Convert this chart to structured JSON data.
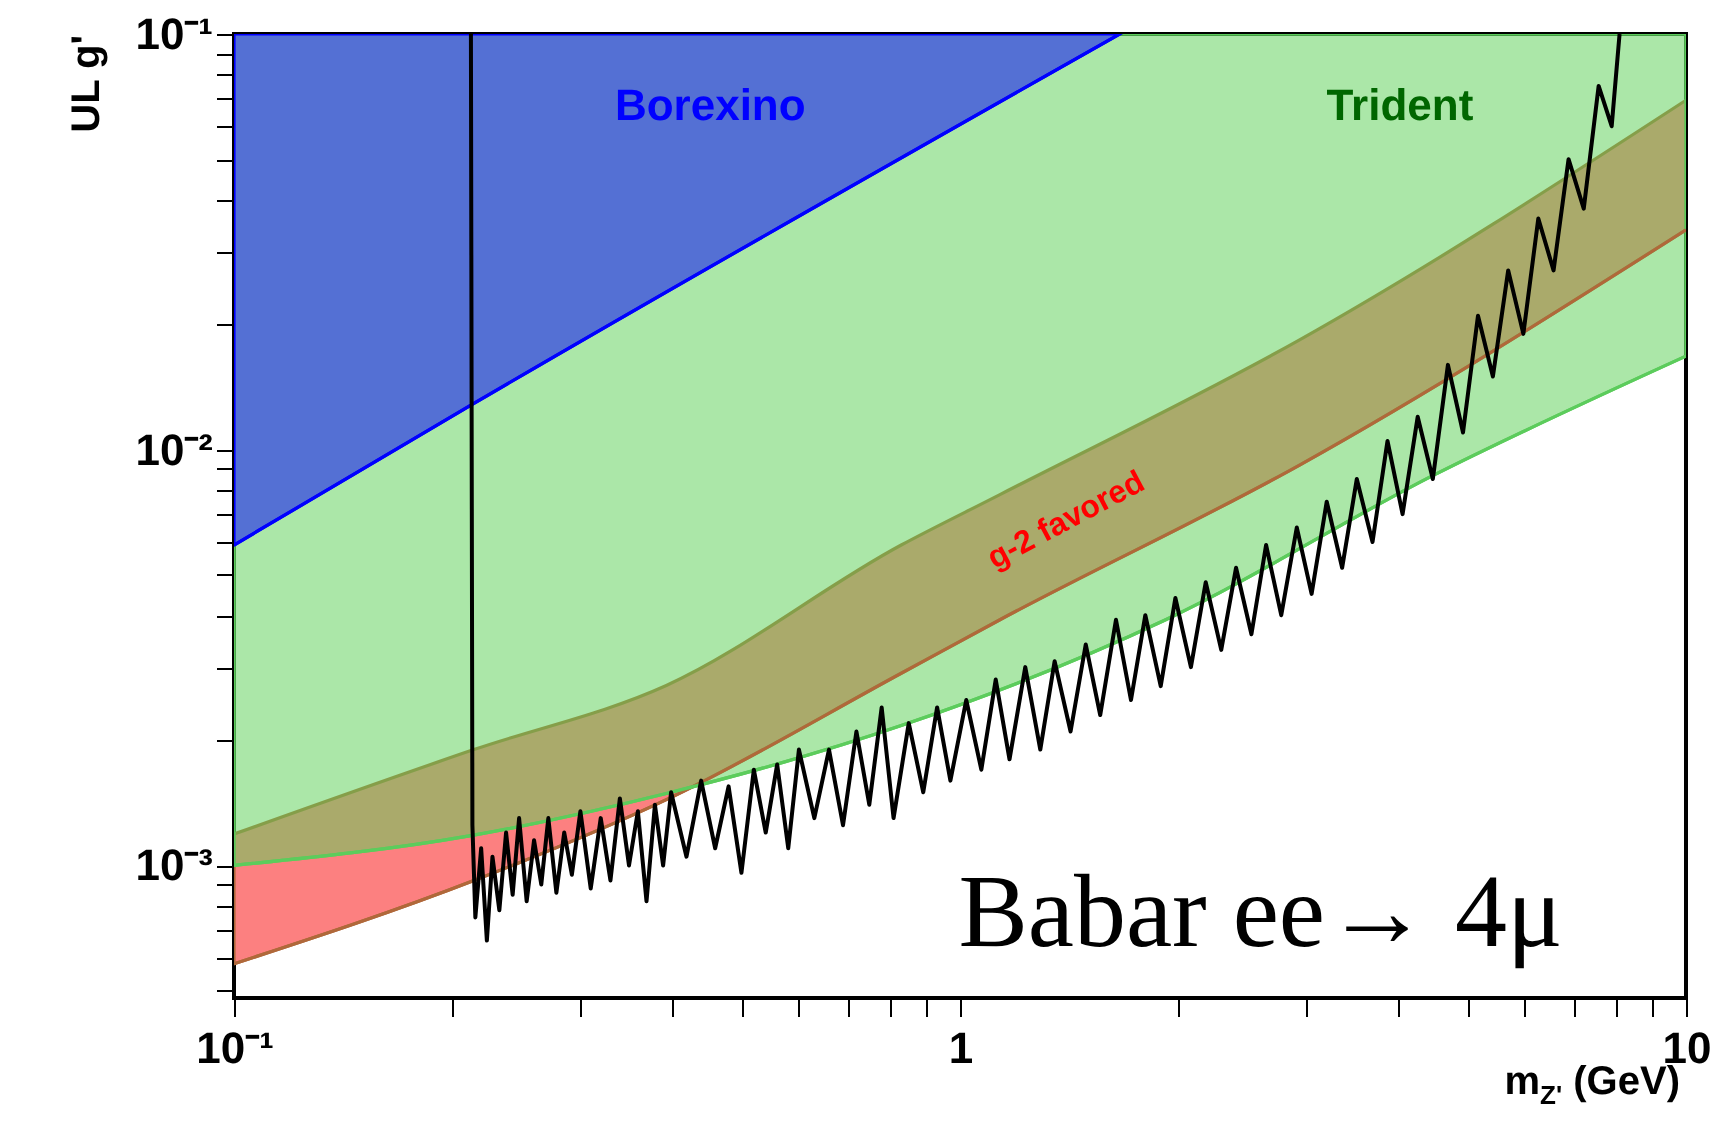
{
  "chart_data": {
    "type": "line",
    "xlabel": "m$_{Z'}$ (GeV)",
    "ylabel": "UL  g'",
    "log": "xy",
    "grid": false,
    "xlim": [
      0.1,
      10
    ],
    "ylim": [
      0.00048,
      0.1
    ],
    "xticks": [
      {
        "value": 0.1,
        "label": "10⁻¹"
      },
      {
        "value": 0.2,
        "label": null
      },
      {
        "value": 0.3,
        "label": null
      },
      {
        "value": 0.4,
        "label": null
      },
      {
        "value": 0.5,
        "label": null
      },
      {
        "value": 0.6,
        "label": null
      },
      {
        "value": 0.7,
        "label": null
      },
      {
        "value": 0.8,
        "label": null
      },
      {
        "value": 0.9,
        "label": null
      },
      1,
      {
        "value": 2,
        "label": null
      },
      {
        "value": 3,
        "label": null
      },
      {
        "value": 4,
        "label": null
      },
      {
        "value": 5,
        "label": null
      },
      {
        "value": 6,
        "label": null
      },
      {
        "value": 7,
        "label": null
      },
      {
        "value": 8,
        "label": null
      },
      {
        "value": 9,
        "label": null
      },
      10
    ],
    "yticks": [
      {
        "value": 0.0005,
        "label": null
      },
      {
        "value": 0.0006,
        "label": null
      },
      {
        "value": 0.0007,
        "label": null
      },
      {
        "value": 0.0008,
        "label": null
      },
      {
        "value": 0.0009,
        "label": null
      },
      {
        "value": 0.001,
        "label": "10⁻³"
      },
      {
        "value": 0.002,
        "label": null
      },
      {
        "value": 0.003,
        "label": null
      },
      {
        "value": 0.004,
        "label": null
      },
      {
        "value": 0.005,
        "label": null
      },
      {
        "value": 0.006,
        "label": null
      },
      {
        "value": 0.007,
        "label": null
      },
      {
        "value": 0.008,
        "label": null
      },
      {
        "value": 0.009,
        "label": null
      },
      {
        "value": 0.01,
        "label": "10⁻²"
      },
      {
        "value": 0.02,
        "label": null
      },
      {
        "value": 0.03,
        "label": null
      },
      {
        "value": 0.04,
        "label": null
      },
      {
        "value": 0.05,
        "label": null
      },
      {
        "value": 0.06,
        "label": null
      },
      {
        "value": 0.07,
        "label": null
      },
      {
        "value": 0.08,
        "label": null
      },
      {
        "value": 0.09,
        "label": null
      },
      {
        "value": 0.1,
        "label": "10⁻¹"
      }
    ],
    "series": [
      {
        "color": "#b0683a",
        "x": [
          0.1,
          0.214,
          0.394,
          0.83,
          1.135,
          2.94,
          10
        ],
        "values": [
          0.00058,
          0.00092,
          0.00144,
          0.0029,
          0.0039,
          0.0092,
          0.0338
        ],
        "lower": [
          0.00058,
          0.00092,
          0.00144,
          0.0029,
          0.0039,
          0.0092,
          0.0338
        ],
        "upper": [
          0.00119,
          0.0019,
          0.00271,
          0.0059,
          0.0078,
          0.0184,
          0.0693
        ]
      },
      {
        "color": "#5ccc5c",
        "x": [
          0.1,
          0.212,
          0.394,
          0.83,
          1.92,
          4.5,
          10
        ],
        "values": [
          0.001,
          0.00118,
          0.00149,
          0.00217,
          0.0039,
          0.0087,
          0.0168
        ],
        "lower": [
          0.001,
          0.00118,
          0.00149,
          0.00217,
          0.0039,
          0.0087,
          0.0168
        ],
        "upper": [
          0.1,
          0.1,
          0.1,
          0.1,
          0.1,
          0.1,
          0.1
        ]
      },
      {
        "color": "#0000ff",
        "x": [
          0.1,
          0.212,
          1.66
        ],
        "values": [
          0.0059,
          0.0128,
          0.1
        ],
        "lower": [
          0.0059,
          0.0128,
          0.1
        ],
        "upper": [
          0.1,
          0.1,
          0.1
        ]
      },
      {
        "color": "#000000",
        "x": [
          0.212,
          0.213,
          0.215,
          0.219,
          0.223,
          0.227,
          0.232,
          0.237,
          0.242,
          0.247,
          0.253,
          0.259,
          0.265,
          0.271,
          0.278,
          0.285,
          0.292,
          0.3,
          0.31,
          0.32,
          0.33,
          0.34,
          0.35,
          0.36,
          0.37,
          0.38,
          0.39,
          0.4,
          0.42,
          0.44,
          0.46,
          0.48,
          0.5,
          0.52,
          0.54,
          0.56,
          0.58,
          0.6,
          0.63,
          0.66,
          0.69,
          0.72,
          0.75,
          0.78,
          0.81,
          0.85,
          0.89,
          0.93,
          0.97,
          1.02,
          1.07,
          1.12,
          1.17,
          1.23,
          1.29,
          1.35,
          1.42,
          1.49,
          1.56,
          1.64,
          1.72,
          1.8,
          1.89,
          1.98,
          2.08,
          2.18,
          2.29,
          2.4,
          2.52,
          2.64,
          2.77,
          2.91,
          3.05,
          3.2,
          3.36,
          3.52,
          3.7,
          3.88,
          4.07,
          4.27,
          4.48,
          4.7,
          4.93,
          5.17,
          5.42,
          5.69,
          5.97,
          6.26,
          6.57,
          6.89,
          7.23,
          7.58,
          7.9,
          8.1
        ],
        "values": [
          0.1,
          0.00125,
          0.00075,
          0.0011,
          0.00066,
          0.00105,
          0.00078,
          0.0012,
          0.00085,
          0.0013,
          0.00082,
          0.00115,
          0.0009,
          0.0013,
          0.00086,
          0.0012,
          0.00095,
          0.00135,
          0.00088,
          0.0013,
          0.00092,
          0.00145,
          0.001,
          0.00135,
          0.00082,
          0.0014,
          0.001,
          0.0015,
          0.00105,
          0.0016,
          0.0011,
          0.00155,
          0.00096,
          0.0017,
          0.0012,
          0.00175,
          0.0011,
          0.0019,
          0.0013,
          0.0019,
          0.00125,
          0.0021,
          0.0014,
          0.0024,
          0.0013,
          0.0022,
          0.0015,
          0.0024,
          0.0016,
          0.0025,
          0.0017,
          0.0028,
          0.0018,
          0.003,
          0.0019,
          0.0031,
          0.0021,
          0.0034,
          0.0023,
          0.0039,
          0.0025,
          0.004,
          0.0027,
          0.0044,
          0.003,
          0.0048,
          0.0033,
          0.0052,
          0.0036,
          0.0059,
          0.004,
          0.0065,
          0.0045,
          0.0075,
          0.0052,
          0.0085,
          0.006,
          0.0105,
          0.007,
          0.012,
          0.0085,
          0.016,
          0.011,
          0.021,
          0.015,
          0.027,
          0.019,
          0.036,
          0.027,
          0.05,
          0.038,
          0.075,
          0.06,
          0.1
        ]
      }
    ],
    "annotations": [
      "Borexino",
      "Trident",
      "g-2 favored",
      "Babar ee→ 4μ"
    ]
  }
}
